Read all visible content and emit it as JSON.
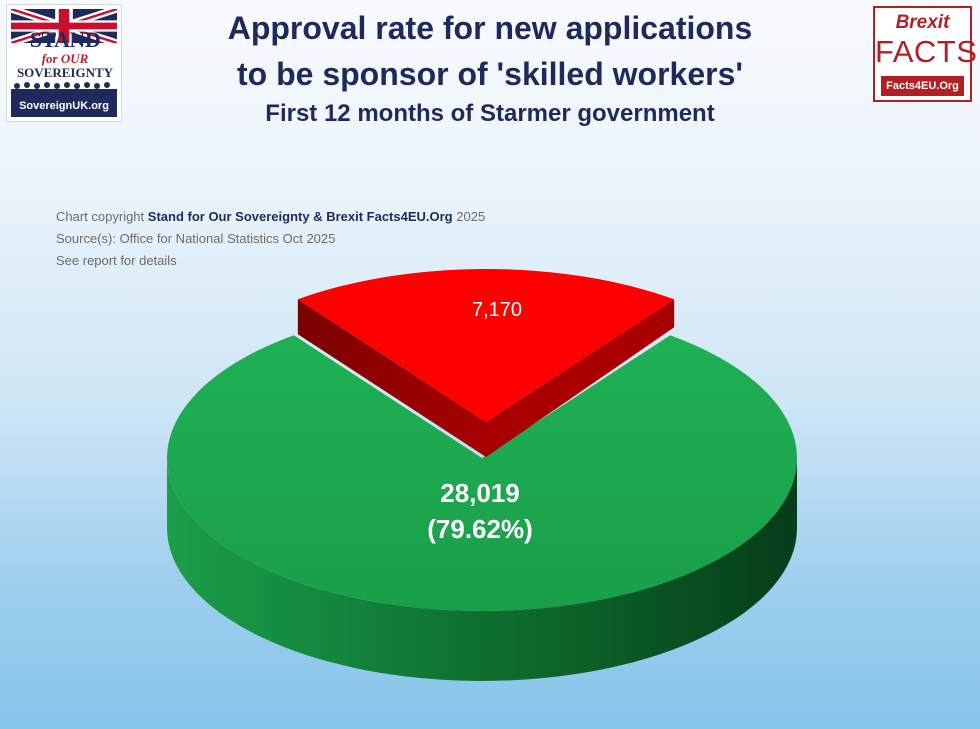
{
  "header": {
    "title_line1": "Approval rate for new applications",
    "title_line2": "to be sponsor of 'skilled workers'",
    "subtitle": "First 12 months of Starmer government"
  },
  "credits": {
    "copyright_prefix": "Chart copyright",
    "copyright_owner": "Stand for Our Sovereignty & Brexit Facts4EU.Org",
    "copyright_year": "2025",
    "source": "Source(s): Office for National Statistics Oct 2025",
    "note": "See report for details"
  },
  "logo_left": {
    "stand": "STAND",
    "for_our": "for OUR",
    "sovereignty": "SOVEREIGNTY",
    "domain": "SovereignUK.org"
  },
  "logo_right": {
    "brexit": "Brexit",
    "facts": "FACTS",
    "site": "Facts4EU.Org"
  },
  "chart_data": {
    "type": "pie",
    "title": "Approval rate for new applications to be sponsor of 'skilled workers'",
    "subtitle": "First 12 months of Starmer government",
    "slices": [
      {
        "value": 28019,
        "label": "28,019",
        "percent_label": "(79.62%)",
        "color": "#1a9e4a",
        "side_color": "#0d6b2d"
      },
      {
        "value": 7170,
        "label": "7,170",
        "color": "#ff0000",
        "side_color": "#a80000",
        "exploded": true
      }
    ]
  }
}
